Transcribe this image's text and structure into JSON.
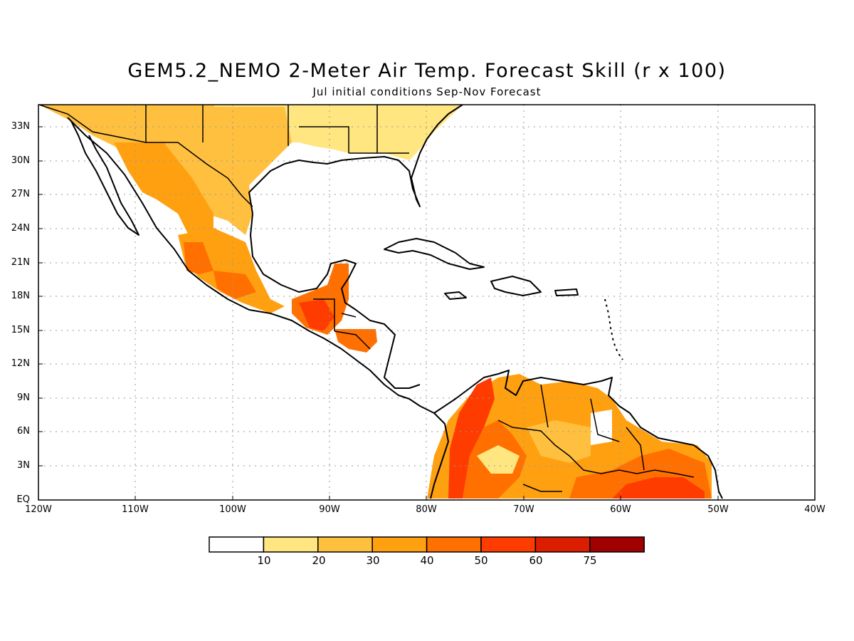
{
  "title": "GEM5.2_NEMO 2-Meter Air Temp. Forecast Skill (r x 100)",
  "subtitle": "Jul initial conditions  Sep-Nov Forecast",
  "lat_ticks": [
    "33N",
    "30N",
    "27N",
    "24N",
    "21N",
    "18N",
    "15N",
    "12N",
    "9N",
    "6N",
    "3N",
    "EQ"
  ],
  "lon_ticks": [
    "120W",
    "110W",
    "100W",
    "90W",
    "80W",
    "70W",
    "60W",
    "50W",
    "40W"
  ],
  "colorbar": {
    "labels": [
      "10",
      "20",
      "30",
      "40",
      "50",
      "60",
      "75"
    ],
    "colors": [
      "#ffffff",
      "#ffe680",
      "#ffc040",
      "#ffa010",
      "#ff7000",
      "#ff3c00",
      "#dc1e00",
      "#a00000"
    ]
  },
  "colors": {
    "frame": "#000000",
    "grid": "#999999",
    "coast": "#000000"
  }
}
